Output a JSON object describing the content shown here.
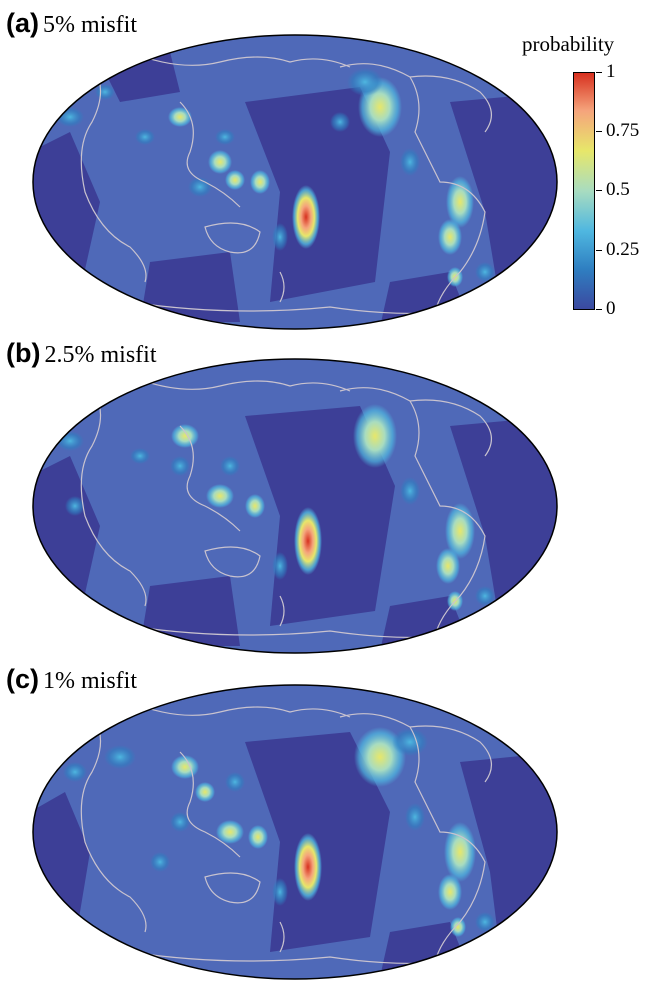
{
  "panels": [
    {
      "letter": "(a)",
      "caption": "5% misfit"
    },
    {
      "letter": "(b)",
      "caption": "2.5% misfit"
    },
    {
      "letter": "(c)",
      "caption": "1% misfit"
    }
  ],
  "colorbar": {
    "title": "probability",
    "ticks": [
      "1",
      "0.75",
      "0.5",
      "0.25",
      "0"
    ],
    "colormap": [
      "#3b49a0",
      "#2f7fc1",
      "#4fb7e0",
      "#a8dcc0",
      "#e7e76a",
      "#f5a47c",
      "#d7301f"
    ]
  },
  "colors": {
    "ocean_base": "#4f69b8",
    "low_probability": "#3d3f97",
    "coastline": "#c9c3cf",
    "frame": "#000000"
  }
}
